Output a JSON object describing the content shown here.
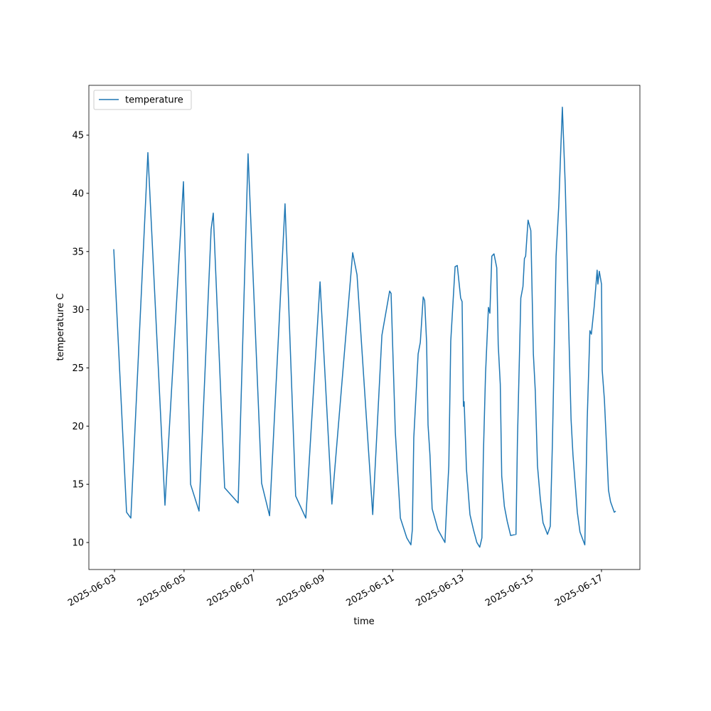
{
  "chart_data": {
    "type": "line",
    "x_label": "time",
    "y_label": "temperature C",
    "legend": "upper left",
    "xlim": [
      "2025-06-02T06:20",
      "2025-06-18T02:30"
    ],
    "ylim": [
      7.68,
      49.28
    ],
    "xticks": [
      "2025-06-03",
      "2025-06-05",
      "2025-06-07",
      "2025-06-09",
      "2025-06-11",
      "2025-06-13",
      "2025-06-15",
      "2025-06-17"
    ],
    "yticks": [
      10,
      15,
      20,
      25,
      30,
      35,
      40,
      45
    ],
    "x": [
      "2025-06-02T23:30",
      "2025-06-03T08:20",
      "2025-06-03T11:17",
      "2025-06-03T23:03",
      "2025-06-04T10:50",
      "2025-06-04T23:35",
      "2025-06-05T04:30",
      "2025-06-05T10:20",
      "2025-06-05T18:40",
      "2025-06-05T20:10",
      "2025-06-06T04:00",
      "2025-06-06T13:20",
      "2025-06-06T20:10",
      "2025-06-07T05:30",
      "2025-06-07T11:00",
      "2025-06-07T21:40",
      "2025-06-08T05:00",
      "2025-06-08T12:00",
      "2025-06-08T21:50",
      "2025-06-09T06:00",
      "2025-06-09T20:20",
      "2025-06-09T23:20",
      "2025-06-10T10:10",
      "2025-06-10T16:30",
      "2025-06-10T21:50",
      "2025-06-10T22:50",
      "2025-06-11T01:45",
      "2025-06-11T05:15",
      "2025-06-11T09:40",
      "2025-06-11T12:30",
      "2025-06-11T13:30",
      "2025-06-11T14:30",
      "2025-06-11T17:30",
      "2025-06-11T19:00",
      "2025-06-11T21:00",
      "2025-06-11T22:00",
      "2025-06-11T23:20",
      "2025-06-12T00:20",
      "2025-06-12T01:40",
      "2025-06-12T03:10",
      "2025-06-12T07:10",
      "2025-06-12T12:00",
      "2025-06-12T13:00",
      "2025-06-12T14:40",
      "2025-06-12T16:00",
      "2025-06-12T19:00",
      "2025-06-12T20:30",
      "2025-06-12T22:50",
      "2025-06-12T23:50",
      "2025-06-13T00:45",
      "2025-06-13T01:15",
      "2025-06-13T02:50",
      "2025-06-13T05:15",
      "2025-06-13T07:40",
      "2025-06-13T10:00",
      "2025-06-13T12:00",
      "2025-06-13T13:30",
      "2025-06-13T14:30",
      "2025-06-13T16:00",
      "2025-06-13T18:00",
      "2025-06-13T19:00",
      "2025-06-13T20:20",
      "2025-06-13T21:50",
      "2025-06-13T23:45",
      "2025-06-14T00:45",
      "2025-06-14T02:10",
      "2025-06-14T03:10",
      "2025-06-14T05:00",
      "2025-06-14T07:00",
      "2025-06-14T09:20",
      "2025-06-14T13:00",
      "2025-06-14T14:00",
      "2025-06-14T16:20",
      "2025-06-14T17:50",
      "2025-06-14T18:50",
      "2025-06-14T19:40",
      "2025-06-14T21:20",
      "2025-06-14T23:15",
      "2025-06-15T01:00",
      "2025-06-15T02:20",
      "2025-06-15T03:50",
      "2025-06-15T05:45",
      "2025-06-15T07:40",
      "2025-06-15T10:45",
      "2025-06-15T12:40",
      "2025-06-15T14:10",
      "2025-06-15T16:40",
      "2025-06-15T18:30",
      "2025-06-15T20:00",
      "2025-06-15T21:00",
      "2025-06-15T23:00",
      "2025-06-16T00:00",
      "2025-06-16T01:30",
      "2025-06-16T03:00",
      "2025-06-16T04:20",
      "2025-06-16T07:20",
      "2025-06-16T09:10",
      "2025-06-16T12:30",
      "2025-06-16T14:10",
      "2025-06-16T16:00",
      "2025-06-16T17:00",
      "2025-06-16T19:00",
      "2025-06-16T21:00",
      "2025-06-16T21:30",
      "2025-06-16T22:30",
      "2025-06-17T00:00",
      "2025-06-17T00:30",
      "2025-06-17T02:00",
      "2025-06-17T03:20",
      "2025-06-17T04:50",
      "2025-06-17T06:15",
      "2025-06-17T08:50",
      "2025-06-17T09:50"
    ],
    "series": [
      {
        "name": "temperature",
        "color": "#1f77b4",
        "values": [
          35.2,
          12.6,
          12.1,
          43.5,
          13.2,
          41.0,
          15.0,
          12.7,
          36.9,
          38.3,
          14.7,
          13.4,
          43.4,
          15.1,
          12.3,
          39.1,
          14.0,
          12.1,
          32.4,
          13.3,
          34.9,
          33.0,
          12.4,
          27.8,
          31.6,
          31.4,
          19.5,
          12.1,
          10.4,
          9.8,
          11.1,
          19.0,
          26.2,
          27.2,
          31.1,
          30.8,
          27.2,
          20.1,
          17.5,
          12.9,
          11.1,
          10.0,
          12.6,
          16.6,
          27.3,
          33.7,
          33.8,
          31.0,
          30.7,
          21.7,
          22.1,
          16.3,
          12.4,
          11.1,
          10.0,
          9.6,
          10.4,
          17.5,
          24.5,
          30.2,
          29.7,
          34.6,
          34.8,
          33.6,
          27.0,
          23.6,
          15.7,
          13.1,
          11.8,
          10.6,
          10.7,
          18.7,
          31.0,
          32.0,
          34.4,
          34.6,
          37.7,
          36.8,
          26.2,
          23.0,
          16.6,
          13.8,
          11.7,
          10.7,
          11.4,
          18.7,
          34.6,
          38.9,
          44.1,
          47.4,
          40.7,
          35.8,
          27.9,
          20.6,
          17.5,
          12.6,
          10.9,
          9.8,
          20.6,
          28.2,
          27.9,
          30.3,
          33.4,
          32.2,
          33.3,
          32.2,
          24.8,
          22.3,
          18.7,
          14.5,
          13.5,
          12.6,
          12.7
        ]
      }
    ]
  }
}
